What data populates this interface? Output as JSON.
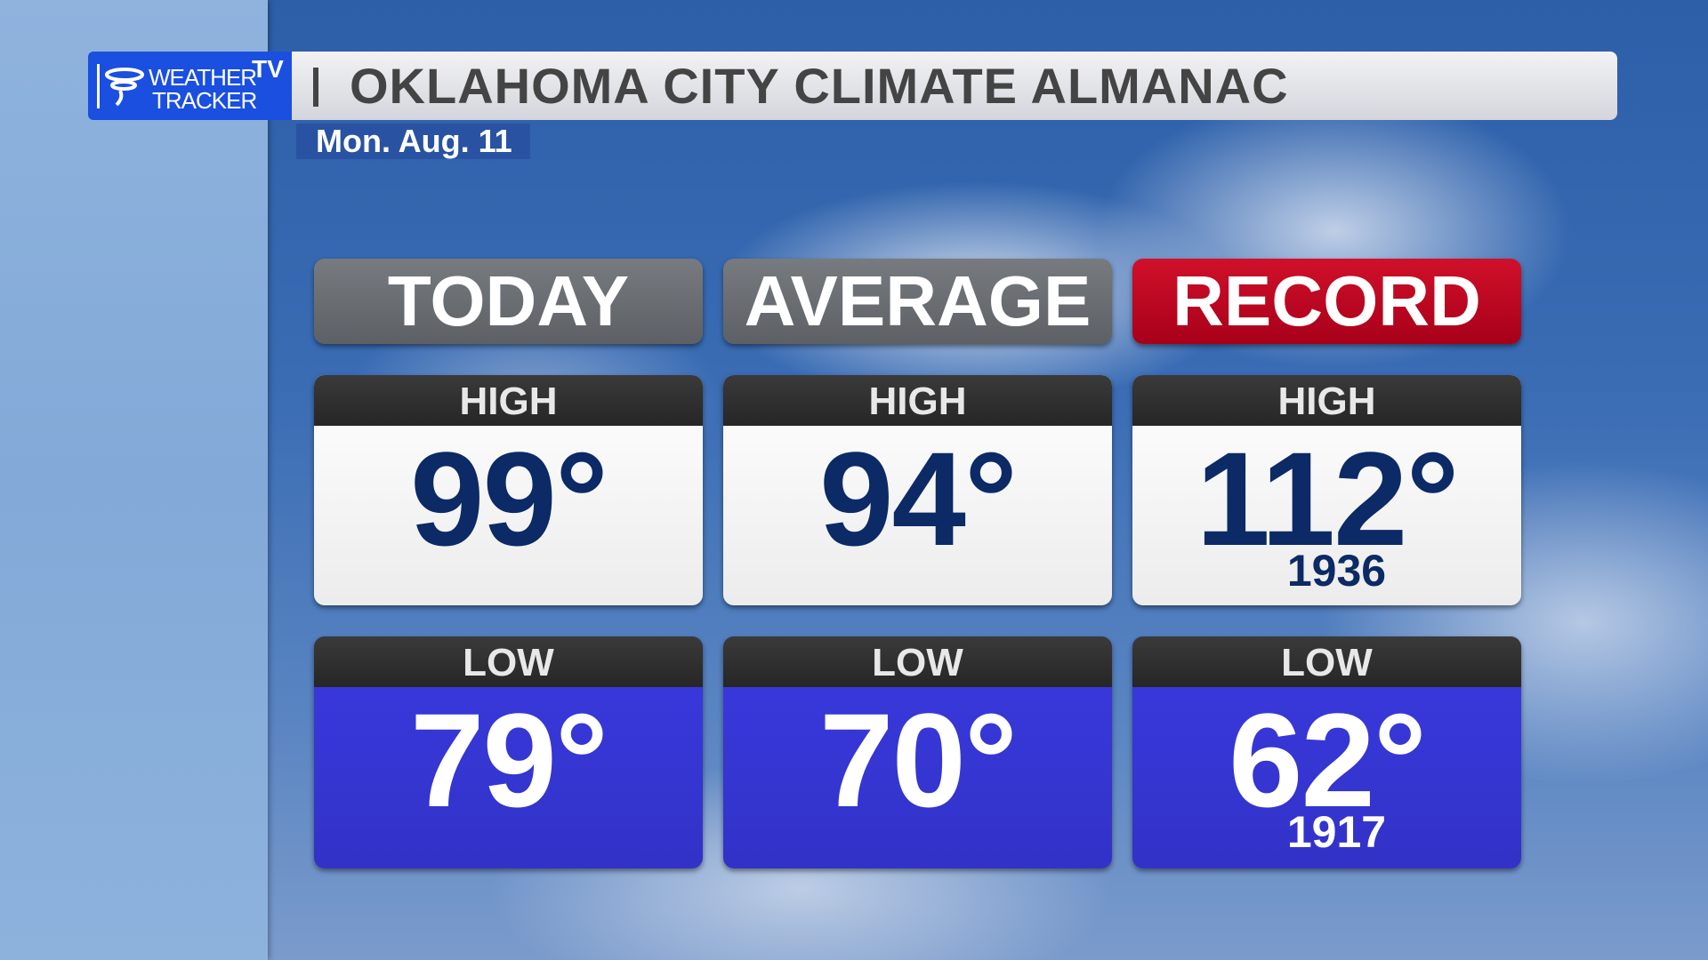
{
  "header": {
    "logo": {
      "line1": "WEATHER",
      "line2": "TRACKER",
      "badge": "TV"
    },
    "title": "OKLAHOMA CITY CLIMATE ALMANAC",
    "date": "Mon. Aug. 11"
  },
  "columns": [
    {
      "heading": "TODAY",
      "high": {
        "label": "HIGH",
        "value": "99°"
      },
      "low": {
        "label": "LOW",
        "value": "79°"
      }
    },
    {
      "heading": "AVERAGE",
      "high": {
        "label": "HIGH",
        "value": "94°"
      },
      "low": {
        "label": "LOW",
        "value": "70°"
      }
    },
    {
      "heading": "RECORD",
      "high": {
        "label": "HIGH",
        "value": "112°",
        "year": "1936"
      },
      "low": {
        "label": "LOW",
        "value": "62°",
        "year": "1917"
      }
    }
  ]
}
